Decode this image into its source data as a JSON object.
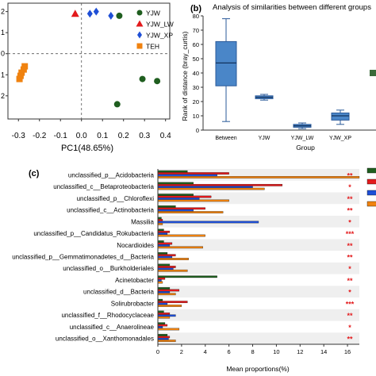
{
  "panel_b": {
    "label": "(b)",
    "title": "Analysis of similarities between different groups",
    "ylabel": "Rank of distance (bray_curtis)",
    "xlabel": "Group"
  },
  "panel_c": {
    "label": "(c)"
  },
  "colors": {
    "YJW": "#1f5e1f",
    "YJW_LW": "#e31a1c",
    "YJW_XP": "#1f4fd6",
    "TEH": "#f0820f",
    "box_fill": "#4a86c8",
    "box_edge": "#2a5a9a",
    "significance": "#e31a1c"
  },
  "chart_data": [
    {
      "panel": "a",
      "type": "scatter",
      "xlabel": "PC1(48.65%)",
      "ylabel": "",
      "xlim": [
        -0.35,
        0.42
      ],
      "ylim": [
        -0.31,
        0.24
      ],
      "xticks": [
        "-0.3",
        "-0.2",
        "-0.1",
        "0.0",
        "0.1",
        "0.2",
        "0.3",
        "0.4"
      ],
      "yticks": [
        "2",
        "1",
        "0",
        "1",
        "2"
      ],
      "grid": false,
      "legend_position": "top-right",
      "series": [
        {
          "name": "YJW",
          "marker": "circle",
          "x": [
            0.18,
            0.29,
            0.36,
            0.17
          ],
          "y": [
            0.18,
            -0.12,
            -0.13,
            -0.24
          ]
        },
        {
          "name": "YJW_LW",
          "marker": "triangle",
          "x": [
            -0.03
          ],
          "y": [
            0.19
          ]
        },
        {
          "name": "YJW_XP",
          "marker": "diamond",
          "x": [
            0.04,
            0.07,
            0.14
          ],
          "y": [
            0.19,
            0.2,
            0.18
          ]
        },
        {
          "name": "TEH",
          "marker": "square",
          "x": [
            -0.27,
            -0.275,
            -0.285,
            -0.29,
            -0.295
          ],
          "y": [
            -0.06,
            -0.075,
            -0.09,
            -0.105,
            -0.12
          ]
        }
      ]
    },
    {
      "panel": "b",
      "type": "box",
      "categories": [
        "Between",
        "YJW",
        "YJW_LW",
        "YJW_XP"
      ],
      "ylim": [
        0,
        80
      ],
      "yticks": [
        0,
        10,
        20,
        30,
        40,
        50,
        60,
        70,
        80
      ],
      "boxes": [
        {
          "min": 6,
          "q1": 31,
          "median": 47,
          "q3": 62,
          "max": 78
        },
        {
          "min": 21,
          "q1": 22,
          "median": 23,
          "q3": 24,
          "max": 25
        },
        {
          "min": 1,
          "q1": 2,
          "median": 3,
          "q3": 4,
          "max": 5
        },
        {
          "min": 4,
          "q1": 7,
          "median": 10,
          "q3": 12,
          "max": 14
        }
      ]
    },
    {
      "panel": "c",
      "type": "bar",
      "orientation": "horizontal",
      "xlabel": "Mean proportions(%)",
      "xlim": [
        0,
        17
      ],
      "xticks": [
        "0",
        "2",
        "4",
        "6",
        "8",
        "10",
        "12",
        "14",
        "16"
      ],
      "categories": [
        "unclassified_p__Acidobacteria",
        "unclassified_c__Betaproteobacteria",
        "unclassified_p__Chloroflexi",
        "unclassified_c__Actinobacteria",
        "Massilia",
        "unclassified_p__Candidatus_Rokubacteria",
        "Nocardioides",
        "unclassified_p__Gemmatimonadetes_d__Bacteria",
        "unclassified_o__Burkholderiales",
        "Acinetobacter",
        "unclassified_d__Bacteria",
        "Solirubrobacter",
        "unclassified_f__Rhodocyclaceae",
        "unclassified_c__Anaerolineae",
        "unclassified_o__Xanthomonadales"
      ],
      "series": [
        {
          "name": "YJW",
          "values": [
            2.5,
            3.0,
            3.0,
            1.5,
            0.3,
            0.5,
            0.5,
            0.8,
            1.0,
            5.0,
            1.0,
            0.4,
            0.5,
            0.6,
            0.8
          ]
        },
        {
          "name": "YJW_LW",
          "values": [
            6.0,
            10.5,
            4.5,
            4.0,
            0.4,
            1.0,
            1.2,
            1.5,
            1.5,
            0.6,
            1.8,
            2.5,
            1.0,
            0.8,
            1.0
          ]
        },
        {
          "name": "YJW_XP",
          "values": [
            5.0,
            8.0,
            3.5,
            3.0,
            8.5,
            0.8,
            1.0,
            1.2,
            1.3,
            0.3,
            1.0,
            0.8,
            1.5,
            0.4,
            0.9
          ]
        },
        {
          "name": "TEH",
          "values": [
            17.0,
            9.0,
            6.0,
            5.5,
            0.4,
            4.0,
            3.8,
            2.6,
            2.5,
            0.4,
            1.5,
            2.0,
            1.0,
            1.8,
            1.5
          ]
        }
      ],
      "significance": [
        "**",
        "*",
        "**",
        "**",
        "*",
        "***",
        "**",
        "**",
        "*",
        "**",
        "*",
        "***",
        "**",
        "*",
        "**"
      ]
    }
  ]
}
